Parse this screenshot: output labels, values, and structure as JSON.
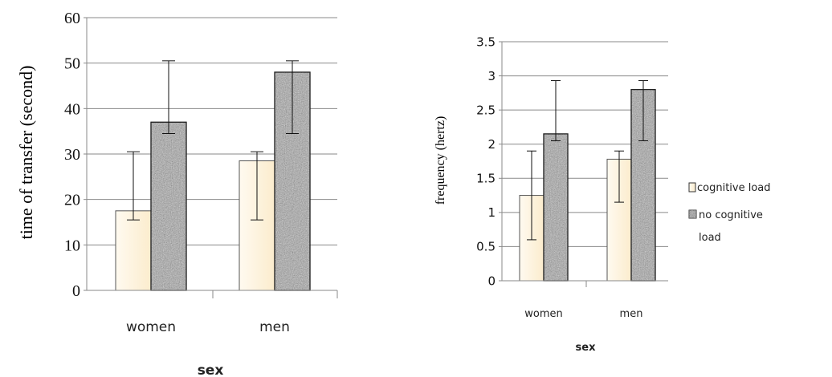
{
  "chart_data": [
    {
      "type": "bar",
      "xlabel": "sex",
      "ylabel": "time of transfer (second)",
      "ylim": [
        0,
        60
      ],
      "yticks": [
        0,
        10,
        20,
        30,
        40,
        50,
        60
      ],
      "categories": [
        "women",
        "men"
      ],
      "grid": true,
      "series": [
        {
          "name": "cognitive load",
          "values": [
            17.5,
            28.5
          ],
          "err_low": [
            15.5,
            15.5
          ],
          "err_high": [
            30.5,
            30.5
          ]
        },
        {
          "name": "no cognitive load",
          "values": [
            37,
            48
          ],
          "err_low": [
            34.5,
            34.5
          ],
          "err_high": [
            50.5,
            50.5
          ]
        }
      ]
    },
    {
      "type": "bar",
      "xlabel": "sex",
      "ylabel": "frequency (hertz)",
      "ylim": [
        0,
        3.5
      ],
      "yticks": [
        "0",
        "0.5",
        "1",
        "1.5",
        "2",
        "2.5",
        "3",
        "3.5"
      ],
      "categories": [
        "women",
        "men"
      ],
      "grid": true,
      "series": [
        {
          "name": "cognitive load",
          "values": [
            1.25,
            1.78
          ],
          "err_low": [
            0.6,
            1.15
          ],
          "err_high": [
            1.9,
            1.9
          ]
        },
        {
          "name": "no cognitive load",
          "values": [
            2.15,
            2.8
          ],
          "err_low": [
            2.05,
            2.05
          ],
          "err_high": [
            2.93,
            2.93
          ]
        }
      ],
      "legend": {
        "position": "right",
        "entries": [
          "cognitive load",
          "no cognitive load"
        ]
      }
    }
  ],
  "colors": {
    "cognitive_load": "#fdf3dc",
    "no_cognitive_load": "#9a9a9a",
    "grid": "#808080"
  }
}
